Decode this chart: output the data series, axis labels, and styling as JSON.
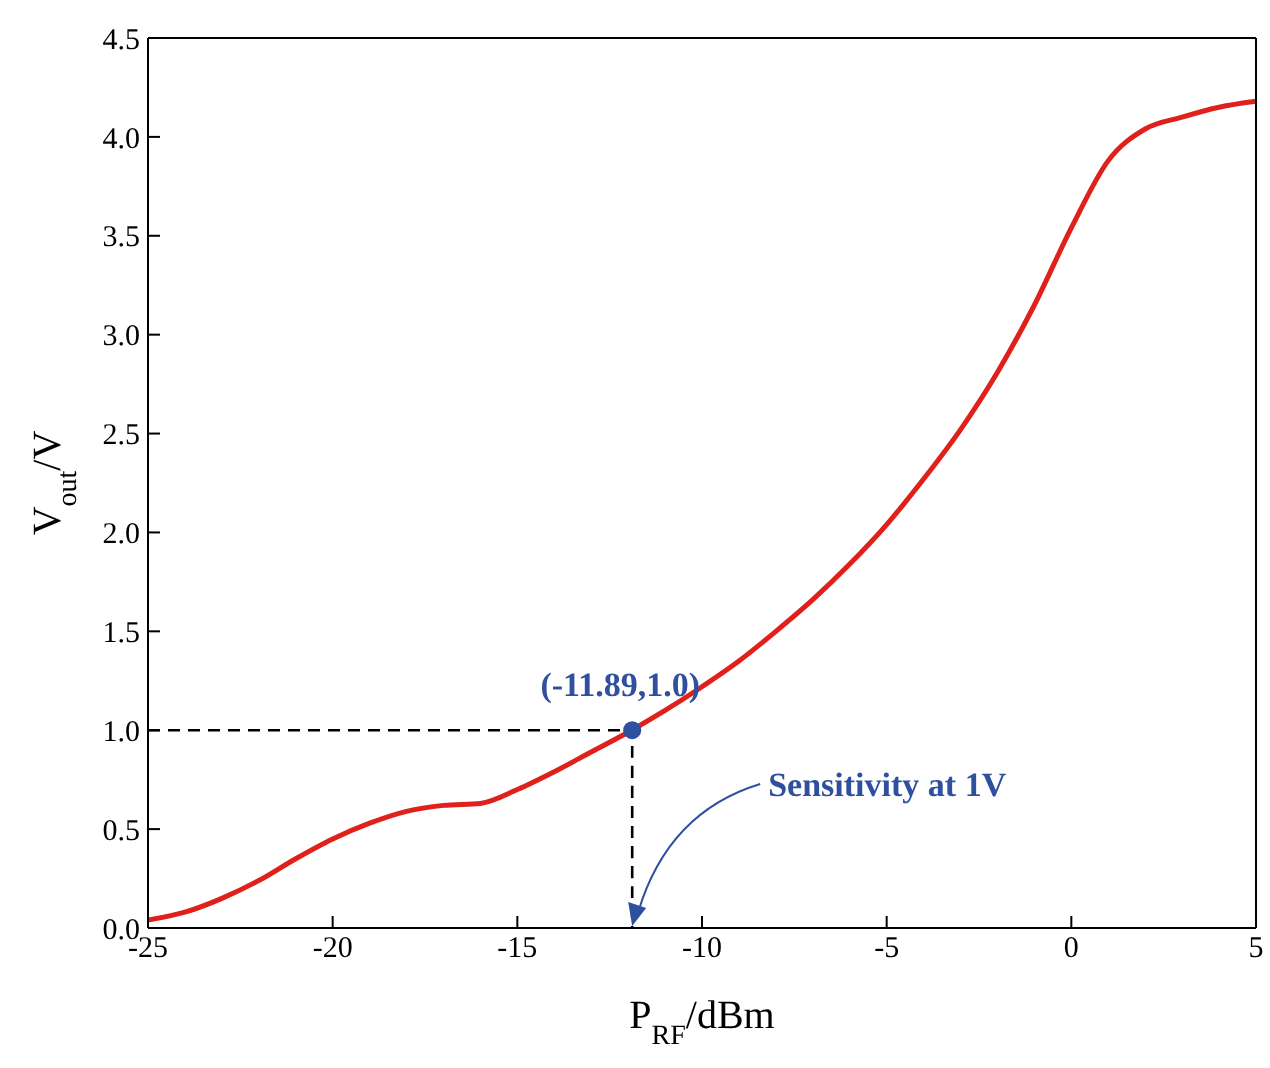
{
  "chart_data": {
    "type": "line",
    "xlabel": "P$_{RF}$/dBm",
    "ylabel": "V$_{out}$/V",
    "xlim": [
      -25,
      5
    ],
    "xticks": [
      -25,
      -20,
      -15,
      -10,
      -5,
      0,
      5
    ],
    "ylim": [
      0,
      4.5
    ],
    "yticks": [
      {
        "value": 0,
        "label": "0.0"
      },
      {
        "value": 0.5,
        "label": "0.5"
      },
      {
        "value": 1,
        "label": "1.0"
      },
      {
        "value": 1.5,
        "label": "1.5"
      },
      {
        "value": 2,
        "label": "2.0"
      },
      {
        "value": 2.5,
        "label": "2.5"
      },
      {
        "value": 3,
        "label": "3.0"
      },
      {
        "value": 3.5,
        "label": "3.5"
      },
      {
        "value": 4,
        "label": "4.0"
      },
      {
        "value": 4.5,
        "label": "4.5"
      }
    ],
    "series": [
      {
        "color": "#e0201b",
        "x": [
          -25,
          -24,
          -23,
          -22,
          -21,
          -20,
          -19,
          -18,
          -17,
          -16,
          -15,
          -14,
          -13,
          -12,
          -11,
          -10,
          -9,
          -8,
          -7,
          -6,
          -5,
          -4,
          -3,
          -2,
          -1,
          0,
          1,
          2,
          3,
          4,
          5
        ],
        "values": [
          0.04,
          0.08,
          0.15,
          0.24,
          0.35,
          0.45,
          0.53,
          0.59,
          0.62,
          0.63,
          0.7,
          0.79,
          0.89,
          0.99,
          1.1,
          1.22,
          1.35,
          1.5,
          1.66,
          1.84,
          2.04,
          2.27,
          2.52,
          2.81,
          3.15,
          3.54,
          3.88,
          4.04,
          4.1,
          4.15,
          4.18
        ]
      },
      {
        "type": "line",
        "color": "#000000",
        "line_style": "dashed",
        "x": [
          -25,
          -11.89,
          -11.89
        ],
        "values": [
          1,
          1,
          0
        ]
      },
      {
        "type": "scatter",
        "color": "#2f4f9f",
        "marker": "circle",
        "x": [
          -11.89
        ],
        "values": [
          1.0
        ]
      }
    ],
    "annotations": [
      {
        "text": "(-11.89,1.0)",
        "x": -11.89,
        "y": 1.0
      },
      {
        "text": "Sensitivity at 1V",
        "x": -11.89,
        "y": 0
      }
    ]
  }
}
